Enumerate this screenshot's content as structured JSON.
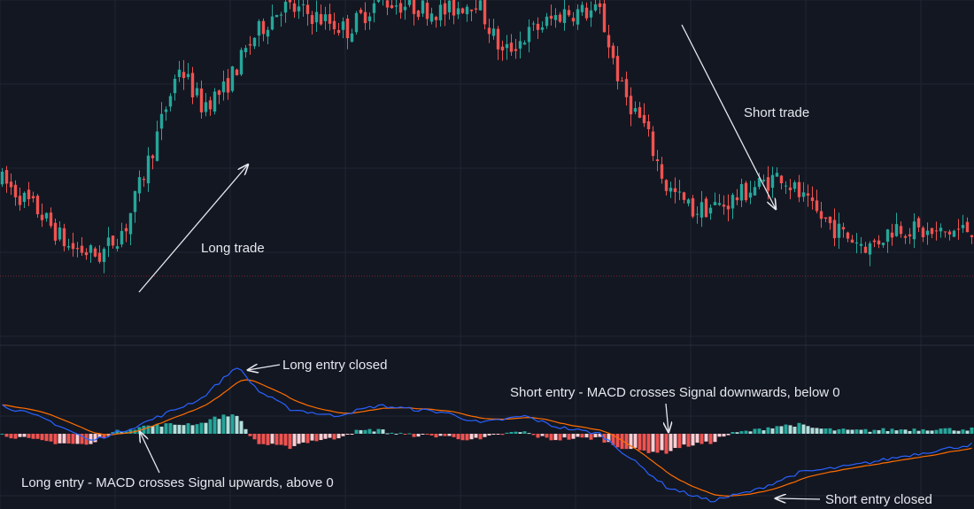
{
  "colors": {
    "background": "#131722",
    "grid": "#1f2433",
    "bull": "#26a69a",
    "bear": "#ef5350",
    "hist_up_strong": "#26a69a",
    "hist_up_weak": "#b2dfdb",
    "hist_down_strong": "#ef5350",
    "hist_down_weak": "#ffcdd2",
    "macd_line": "#2962ff",
    "signal_line": "#ff6d00",
    "annotation": "#e6e8ee",
    "price_line": "#7a2a2a"
  },
  "annotations": {
    "long_trade": "Long trade",
    "short_trade": "Short trade",
    "long_entry_closed": "Long entry closed",
    "short_entry": "Short entry - MACD crosses Signal downwards, below 0",
    "long_entry": "Long entry - MACD crosses Signal upwards, above 0",
    "short_entry_closed": "Short entry closed"
  },
  "chart_data": [
    {
      "type": "candlestick",
      "title": "",
      "xlabel": "",
      "ylabel": "",
      "grid": true,
      "ylim": [
        0,
        100
      ],
      "close_trajectory": [
        [
          0,
          40
        ],
        [
          8,
          30
        ],
        [
          15,
          18
        ],
        [
          22,
          15
        ],
        [
          28,
          25
        ],
        [
          35,
          55
        ],
        [
          40,
          78
        ],
        [
          45,
          65
        ],
        [
          50,
          70
        ],
        [
          57,
          88
        ],
        [
          63,
          98
        ],
        [
          70,
          95
        ],
        [
          78,
          90
        ],
        [
          85,
          100
        ],
        [
          92,
          98
        ],
        [
          100,
          96
        ],
        [
          107,
          100
        ],
        [
          113,
          82
        ],
        [
          120,
          90
        ],
        [
          127,
          96
        ],
        [
          135,
          96
        ],
        [
          140,
          70
        ],
        [
          145,
          58
        ],
        [
          150,
          38
        ],
        [
          156,
          30
        ],
        [
          163,
          32
        ],
        [
          170,
          38
        ],
        [
          176,
          42
        ],
        [
          183,
          30
        ],
        [
          190,
          22
        ],
        [
          196,
          18
        ],
        [
          202,
          25
        ],
        [
          210,
          22
        ],
        [
          219,
          24
        ]
      ]
    },
    {
      "type": "macd",
      "title": "",
      "series": [
        {
          "name": "",
          "role": "macd"
        },
        {
          "name": "",
          "role": "signal"
        },
        {
          "name": "",
          "role": "histogram"
        }
      ],
      "macd_trajectory": [
        [
          0,
          0.4
        ],
        [
          10,
          0.2
        ],
        [
          20,
          -0.1
        ],
        [
          30,
          0.1
        ],
        [
          45,
          0.5
        ],
        [
          53,
          0.95
        ],
        [
          58,
          0.6
        ],
        [
          65,
          0.35
        ],
        [
          75,
          0.25
        ],
        [
          85,
          0.4
        ],
        [
          92,
          0.35
        ],
        [
          100,
          0.3
        ],
        [
          108,
          0.15
        ],
        [
          118,
          0.25
        ],
        [
          125,
          0.1
        ],
        [
          135,
          0.0
        ],
        [
          150,
          -0.75
        ],
        [
          160,
          -0.95
        ],
        [
          170,
          -0.8
        ],
        [
          180,
          -0.55
        ],
        [
          192,
          -0.45
        ],
        [
          205,
          -0.3
        ],
        [
          219,
          -0.15
        ]
      ]
    }
  ]
}
